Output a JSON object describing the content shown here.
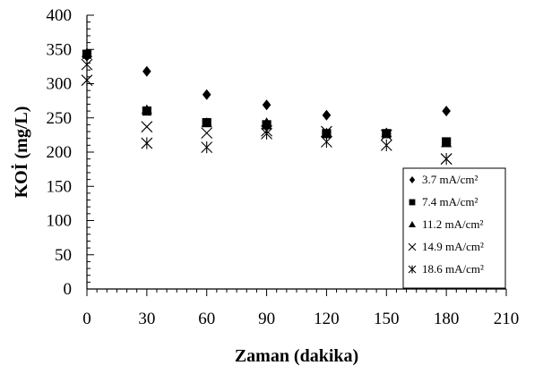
{
  "chart_data": {
    "type": "scatter",
    "title": "",
    "xlabel": "Zaman (dakika)",
    "ylabel": "KOİ (mg/L)",
    "xlim": [
      0,
      210
    ],
    "ylim": [
      0,
      400
    ],
    "xticks": [
      0,
      30,
      60,
      90,
      120,
      150,
      180,
      210
    ],
    "yticks": [
      0,
      50,
      100,
      150,
      200,
      250,
      300,
      350,
      400
    ],
    "grid": false,
    "legend_position": "bottom-right",
    "series": [
      {
        "name": "3.7 mA/cm²",
        "marker": "diamond",
        "x": [
          0,
          30,
          60,
          90,
          120,
          150,
          180
        ],
        "y": [
          340,
          318,
          284,
          269,
          254,
          228,
          260
        ]
      },
      {
        "name": "7.4 mA/cm²",
        "marker": "square",
        "x": [
          0,
          30,
          60,
          90,
          120,
          150,
          180
        ],
        "y": [
          343,
          260,
          243,
          240,
          227,
          227,
          215
        ]
      },
      {
        "name": "11.2 mA/cm²",
        "marker": "triangle",
        "x": [
          0,
          30,
          60,
          90,
          120,
          150,
          180
        ],
        "y": [
          345,
          262,
          243,
          243,
          228,
          228,
          213
        ]
      },
      {
        "name": "14.9 mA/cm²",
        "marker": "x",
        "x": [
          0,
          30,
          60,
          90,
          120,
          150,
          180
        ],
        "y": [
          328,
          237,
          228,
          231,
          230,
          225,
          190
        ]
      },
      {
        "name": "18.6 mA/cm²",
        "marker": "asterisk",
        "x": [
          0,
          30,
          60,
          90,
          120,
          150,
          180
        ],
        "y": [
          305,
          213,
          207,
          227,
          215,
          210,
          190
        ]
      }
    ]
  }
}
